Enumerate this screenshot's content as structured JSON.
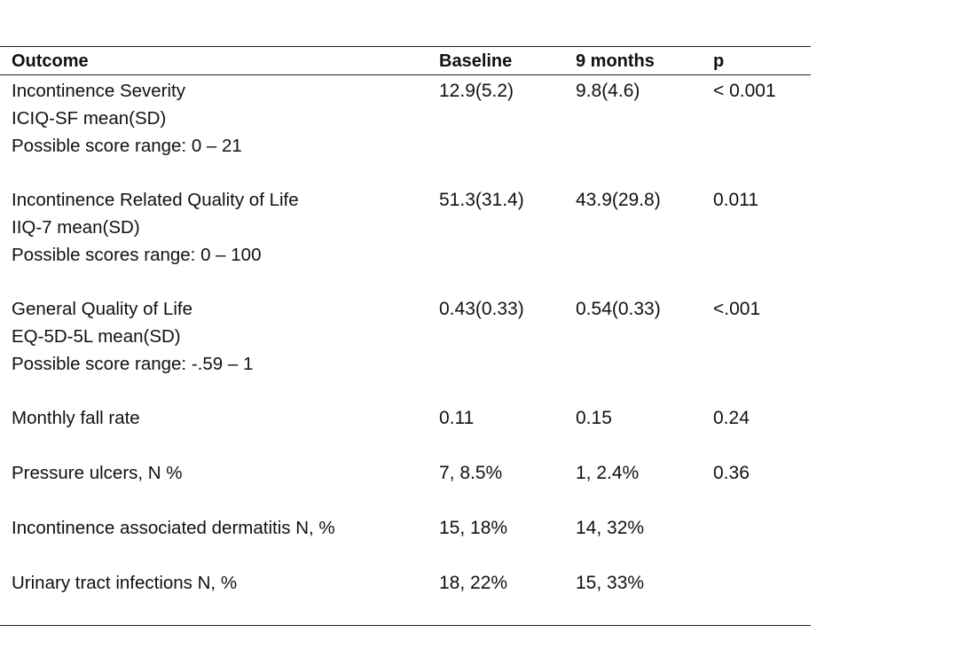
{
  "table": {
    "headers": {
      "outcome": "Outcome",
      "baseline": "Baseline",
      "nine_months": "9 months",
      "p": "p"
    },
    "rows": [
      {
        "lines": [
          "Incontinence Severity",
          "ICIQ-SF mean(SD)",
          "Possible score range: 0 – 21"
        ],
        "baseline": "12.9(5.2)",
        "nine_months": "9.8(4.6)",
        "p": "< 0.001"
      },
      {
        "lines": [
          "Incontinence Related Quality of Life",
          "IIQ-7 mean(SD)",
          "Possible scores range: 0 – 100"
        ],
        "baseline": "51.3(31.4)",
        "nine_months": "43.9(29.8)",
        "p": "0.011"
      },
      {
        "lines": [
          "General Quality of Life",
          "EQ-5D-5L mean(SD)",
          "Possible score range: -.59 – 1"
        ],
        "baseline": "0.43(0.33)",
        "nine_months": "0.54(0.33)",
        "p": "<.001"
      },
      {
        "lines": [
          "Monthly fall rate"
        ],
        "baseline": "0.11",
        "nine_months": "0.15",
        "p": "0.24"
      },
      {
        "lines": [
          "Pressure ulcers, N %"
        ],
        "baseline": "7, 8.5%",
        "nine_months": "1, 2.4%",
        "p": "0.36"
      },
      {
        "lines": [
          "Incontinence associated dermatitis N, %"
        ],
        "baseline": "15, 18%",
        "nine_months": "14, 32%",
        "p": ""
      },
      {
        "lines": [
          "Urinary tract infections N, %"
        ],
        "baseline": "18, 22%",
        "nine_months": "15, 33%",
        "p": ""
      }
    ]
  }
}
